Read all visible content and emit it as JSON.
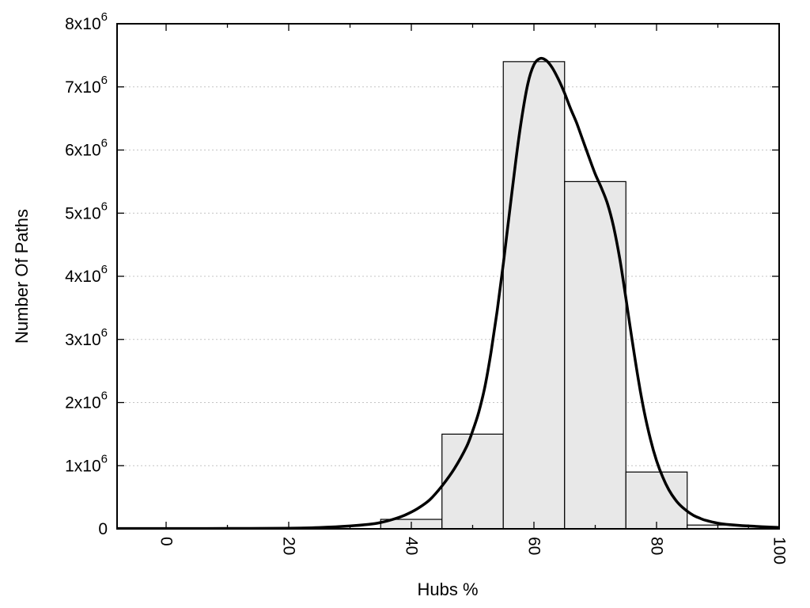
{
  "chart_data": {
    "type": "bar",
    "subtype": "histogram-with-density-curve",
    "title": "",
    "xlabel": "Hubs %",
    "ylabel": "Number Of Paths",
    "xlim": [
      -8,
      100
    ],
    "ylim": [
      0,
      8000000
    ],
    "grid": {
      "show": true,
      "axis": "y",
      "color": "#c4c4c4",
      "style": "dotted"
    },
    "legend": "none",
    "x_major_ticks": [
      0,
      20,
      40,
      60,
      80,
      100
    ],
    "x_tick_labels": [
      "0",
      "20",
      "40",
      "60",
      "80",
      "100"
    ],
    "x_tick_rotation": 90,
    "x_minor_step": 10,
    "y_ticks": [
      0,
      1000000,
      2000000,
      3000000,
      4000000,
      5000000,
      6000000,
      7000000,
      8000000
    ],
    "y_tick_labels": [
      "0",
      "1x10^6",
      "2x10^6",
      "3x10^6",
      "4x10^6",
      "5x10^6",
      "6x10^6",
      "7x10^6",
      "8x10^6"
    ],
    "bars": {
      "bin_width": 10,
      "centers": [
        40,
        50,
        60,
        70,
        80,
        90
      ],
      "values": [
        150000,
        1500000,
        7400000,
        5500000,
        900000,
        60000
      ],
      "fill": "#e8e8e8",
      "stroke": "#000000"
    },
    "curve": {
      "name": "fit-curve",
      "color": "#000000",
      "width": 3.5,
      "points": [
        [
          -8,
          5000
        ],
        [
          0,
          5000
        ],
        [
          10,
          6000
        ],
        [
          20,
          10000
        ],
        [
          25,
          20000
        ],
        [
          30,
          45000
        ],
        [
          33,
          70000
        ],
        [
          35,
          100000
        ],
        [
          37,
          150000
        ],
        [
          39,
          220000
        ],
        [
          41,
          320000
        ],
        [
          43,
          460000
        ],
        [
          45,
          680000
        ],
        [
          47,
          950000
        ],
        [
          49,
          1300000
        ],
        [
          50,
          1550000
        ],
        [
          51,
          1850000
        ],
        [
          52,
          2250000
        ],
        [
          53,
          2800000
        ],
        [
          54,
          3450000
        ],
        [
          55,
          4200000
        ],
        [
          56,
          5000000
        ],
        [
          57,
          5800000
        ],
        [
          58,
          6500000
        ],
        [
          59,
          7050000
        ],
        [
          60,
          7350000
        ],
        [
          61,
          7450000
        ],
        [
          62,
          7420000
        ],
        [
          63,
          7300000
        ],
        [
          64,
          7120000
        ],
        [
          65,
          6900000
        ],
        [
          66,
          6650000
        ],
        [
          67,
          6420000
        ],
        [
          68,
          6150000
        ],
        [
          69,
          5880000
        ],
        [
          70,
          5620000
        ],
        [
          71,
          5400000
        ],
        [
          72,
          5150000
        ],
        [
          73,
          4780000
        ],
        [
          74,
          4280000
        ],
        [
          75,
          3650000
        ],
        [
          76,
          3000000
        ],
        [
          77,
          2380000
        ],
        [
          78,
          1850000
        ],
        [
          79,
          1420000
        ],
        [
          80,
          1080000
        ],
        [
          81,
          820000
        ],
        [
          82,
          620000
        ],
        [
          83,
          470000
        ],
        [
          84,
          360000
        ],
        [
          85,
          280000
        ],
        [
          86,
          215000
        ],
        [
          87,
          170000
        ],
        [
          88,
          135000
        ],
        [
          90,
          90000
        ],
        [
          92,
          65000
        ],
        [
          94,
          50000
        ],
        [
          96,
          40000
        ],
        [
          98,
          30000
        ],
        [
          100,
          22000
        ]
      ]
    },
    "frame_color": "#000000"
  }
}
